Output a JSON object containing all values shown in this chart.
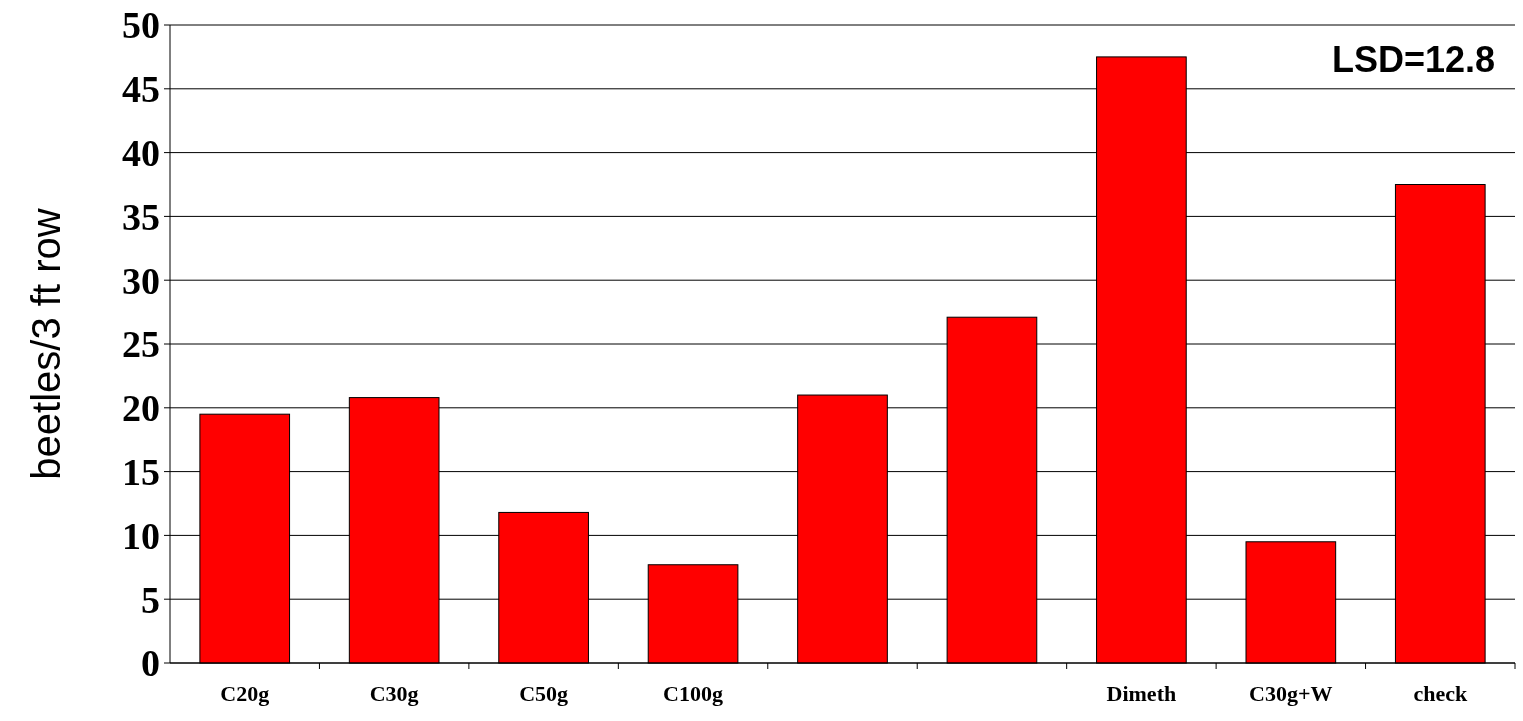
{
  "chart_data": {
    "type": "bar",
    "ylabel": "beetles/3 ft row",
    "categories": [
      "C20g",
      "C30g",
      "C50g",
      "C100g",
      null,
      null,
      "Dimeth",
      "C30g+W",
      "check"
    ],
    "values": [
      19.5,
      20.8,
      11.8,
      7.7,
      21.0,
      27.1,
      47.5,
      9.5,
      37.5
    ],
    "color": "#ff0000",
    "ylim": [
      0,
      50
    ],
    "yticks": [
      0,
      5,
      10,
      15,
      20,
      25,
      30,
      35,
      40,
      45,
      50
    ],
    "grid": "y",
    "annotations": [
      "LSD=12.8"
    ]
  }
}
